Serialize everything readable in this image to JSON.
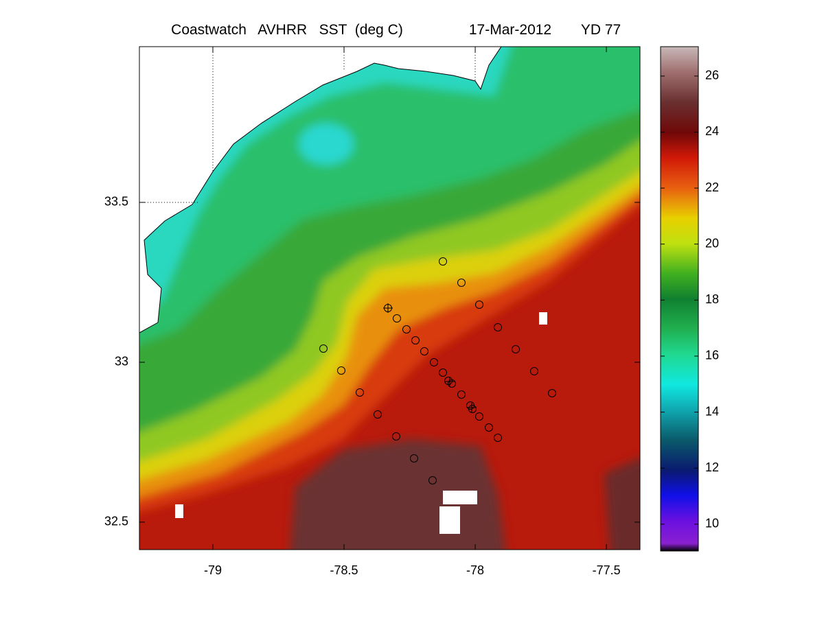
{
  "map": {
    "title": "Coastwatch   AVHRR   SST  (deg C)",
    "date": "17-Mar-2012",
    "yearday": "YD 77",
    "xlim": [
      -79.28,
      -77.372
    ],
    "ylim": [
      32.414,
      33.987
    ],
    "xticks": [
      -79,
      -78.5,
      -78,
      -77.5
    ],
    "yticks": [
      32.5,
      33,
      33.5
    ],
    "colorbar": {
      "lim": [
        9.04,
        27.05
      ],
      "ticks": [
        10,
        12,
        14,
        16,
        18,
        20,
        22,
        24,
        26
      ]
    }
  }
}
